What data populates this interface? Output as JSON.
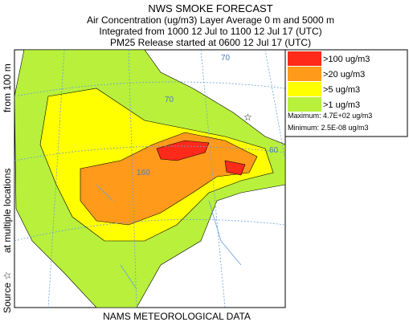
{
  "header": {
    "title": "NWS SMOKE FORECAST",
    "lines": [
      "Air Concentration (ug/m3) Layer Average    0 m and  5000 m",
      "Integrated from 1000 12 Jul to 1100 12 Jul 17 (UTC)",
      "PM25 Release started at 0600 12 Jul 17 (UTC)"
    ]
  },
  "side_text": [
    "Source ☆",
    "at multiple locations",
    "from   100 m"
  ],
  "legend": {
    "entries": [
      {
        "label": ">100 ug/m3",
        "color": "#ff2a1a"
      },
      {
        "label": ">20 ug/m3",
        "color": "#ff9a1a"
      },
      {
        "label": ">5 ug/m3",
        "color": "#ffff00"
      },
      {
        "label": ">1 ug/m3",
        "color": "#b8f03c"
      }
    ],
    "maximum": "Maximum: 4.7E+02 ug/m3",
    "minimum": "Minimum: 2.5E-08 ug/m3"
  },
  "map_labels": [
    "70",
    "70",
    "160",
    "60"
  ],
  "footer": "NAMS METEOROLOGICAL DATA"
}
